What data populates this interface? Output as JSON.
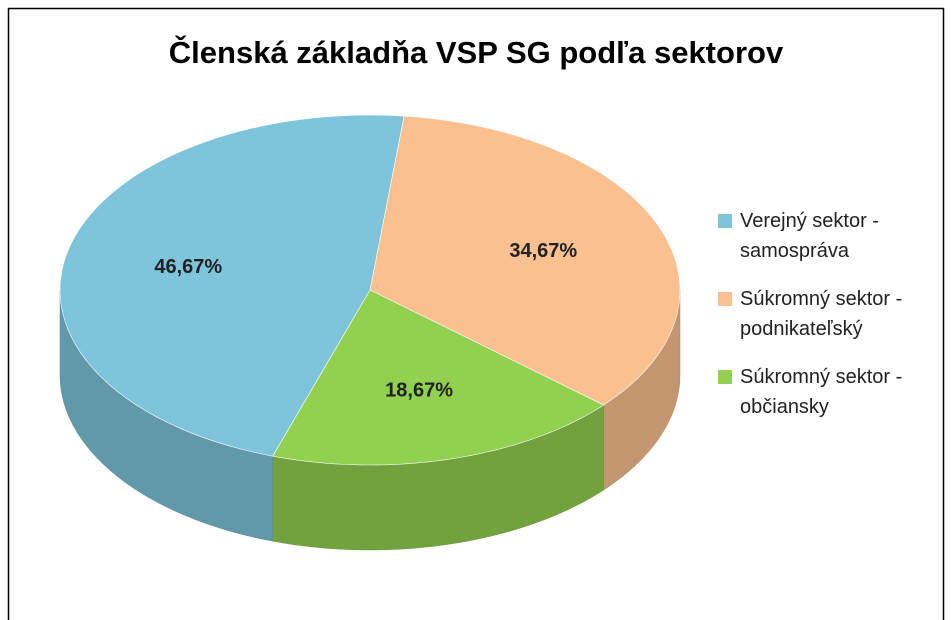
{
  "chart_data": {
    "type": "pie",
    "title": "Členská základňa VSP SG podľa sektorov",
    "categories": [
      "Verejný sektor - samospráva",
      "Súkromný sektor - podnikateľský",
      "Súkromný sektor - občiansky"
    ],
    "values": [
      46.67,
      34.67,
      18.67
    ],
    "value_labels": [
      "46,67%",
      "34,67%",
      "18,67%"
    ],
    "colors": [
      "#7ec4da",
      "#fac090",
      "#92d050"
    ],
    "legend": "right"
  }
}
